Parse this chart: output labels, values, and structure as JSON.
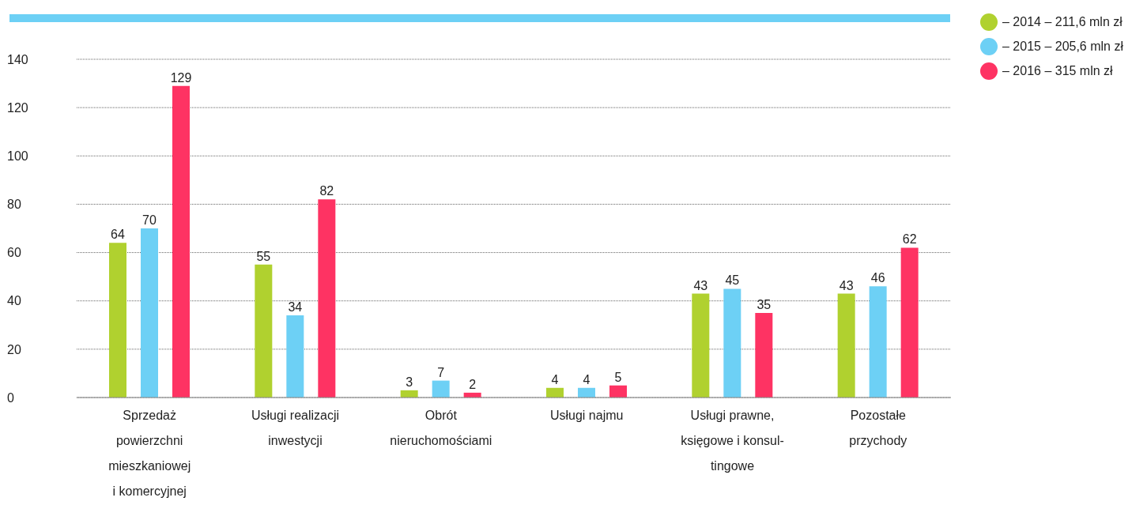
{
  "chart_data": {
    "type": "bar",
    "categories": [
      "Sprzedaż\npowierzchni\nmieszkaniowej\ni komercyjnej",
      "Usługi realizacji\ninwestycji",
      "Obrót\nnieruchomościami",
      "Usługi najmu",
      "Usługi prawne,\nksięgowe i konsul-\ntingowe",
      "Pozostałe\nprzychody"
    ],
    "series": [
      {
        "name": "– 2014 – 211,6 mln zł",
        "color": "#b0d12f",
        "values": [
          64,
          55,
          3,
          4,
          43,
          43
        ]
      },
      {
        "name": "– 2015 – 205,6 mln zł",
        "color": "#6dd0f5",
        "values": [
          70,
          34,
          7,
          4,
          45,
          46
        ]
      },
      {
        "name": "– 2016 – 315 mln zł",
        "color": "#fe3363",
        "values": [
          129,
          82,
          2,
          5,
          35,
          62
        ]
      }
    ],
    "ylim": [
      0,
      140
    ],
    "yticks": [
      0,
      20,
      40,
      60,
      80,
      100,
      120,
      140
    ],
    "grid": "y",
    "legend": "top right",
    "data_labels": true
  }
}
